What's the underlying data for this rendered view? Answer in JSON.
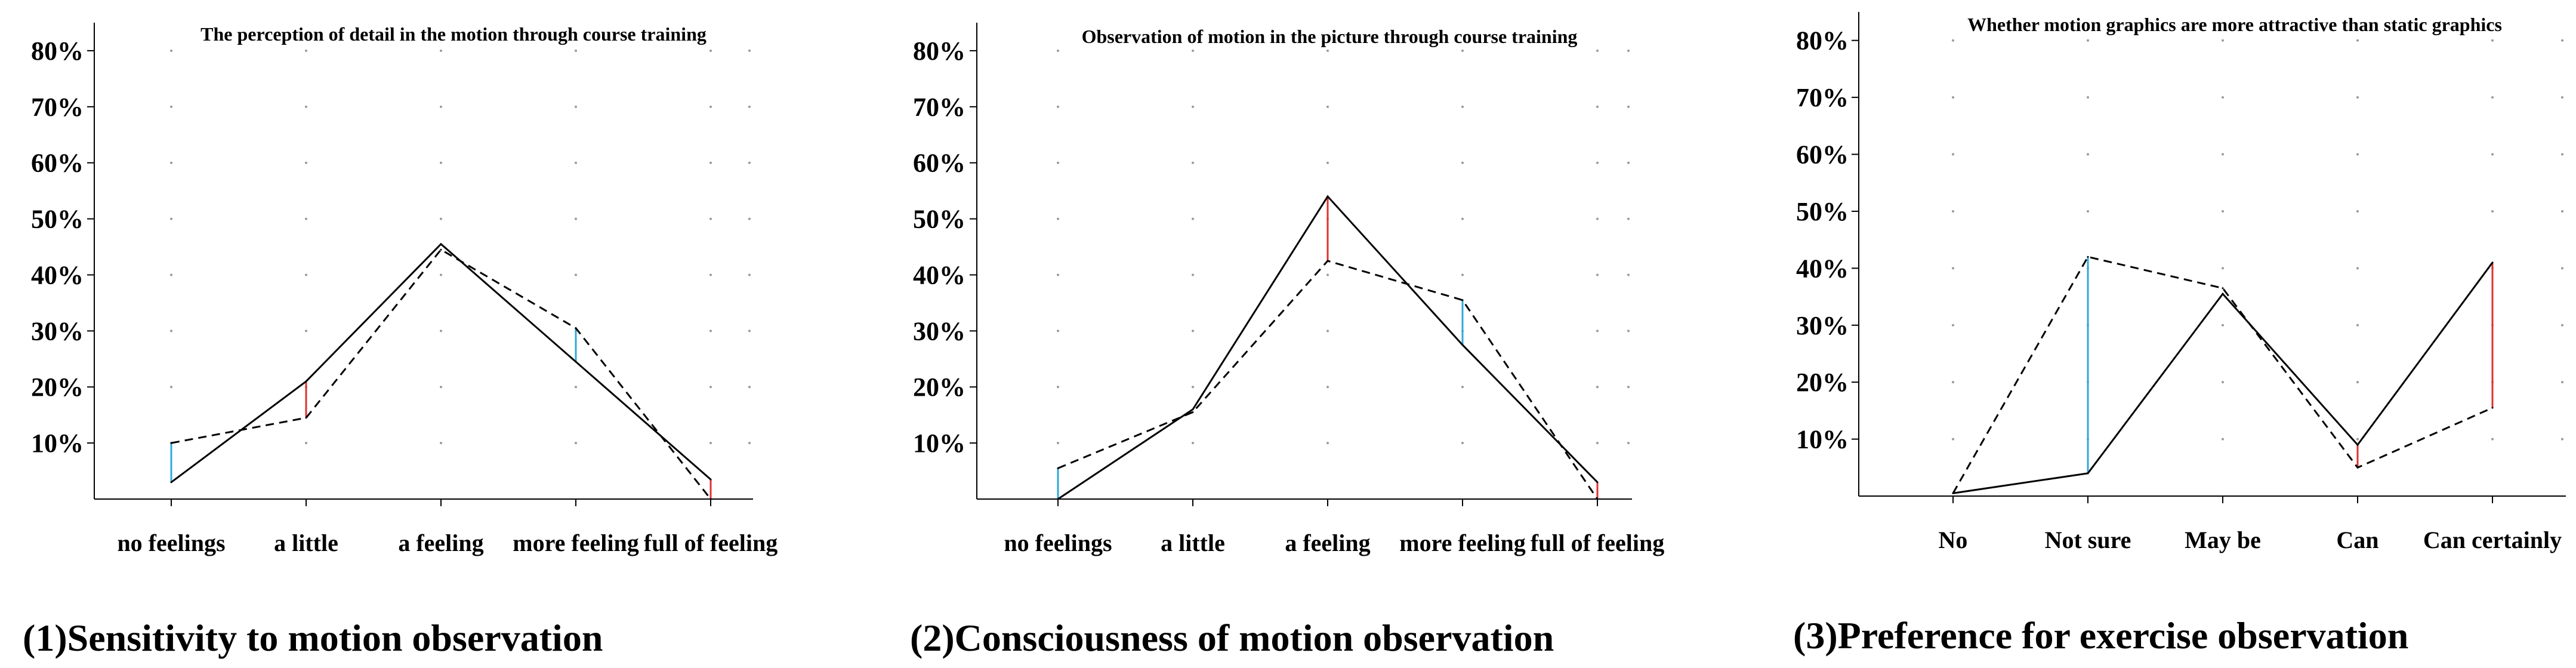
{
  "colors": {
    "axis": "#000000",
    "series_solid": "#000000",
    "series_dashed": "#000000",
    "diff_up": "#e03030",
    "diff_down": "#30a8d8",
    "grid_dot": "#999999"
  },
  "chart_data": [
    {
      "type": "line",
      "title": "The perception of detail in the motion through course training",
      "caption": "(1)Sensitivity to motion observation",
      "categories": [
        "no feelings",
        "a little",
        "a feeling",
        "more feeling",
        "full of feeling"
      ],
      "series": [
        {
          "style": "solid",
          "values": [
            3,
            21,
            45.5,
            24.5,
            3.5
          ]
        },
        {
          "style": "dashed",
          "values": [
            10,
            14.5,
            44.5,
            30.5,
            0
          ]
        }
      ],
      "ylim": [
        0,
        85
      ],
      "yticks": [
        10,
        20,
        30,
        40,
        50,
        60,
        70,
        80
      ],
      "ytick_labels": [
        "10%",
        "20%",
        "30%",
        "40%",
        "50%",
        "60%",
        "70%",
        "80%"
      ],
      "grid": "dotted"
    },
    {
      "type": "line",
      "title": "Observation of motion in the picture through course training",
      "caption": "(2)Consciousness of motion observation",
      "categories": [
        "no feelings",
        "a little",
        "a feeling",
        "more feeling",
        "full of feeling"
      ],
      "series": [
        {
          "style": "solid",
          "values": [
            0,
            16,
            54,
            27.5,
            3
          ]
        },
        {
          "style": "dashed",
          "values": [
            5.5,
            15.5,
            42.5,
            35.5,
            0
          ]
        }
      ],
      "ylim": [
        0,
        85
      ],
      "yticks": [
        10,
        20,
        30,
        40,
        50,
        60,
        70,
        80
      ],
      "ytick_labels": [
        "10%",
        "20%",
        "30%",
        "40%",
        "50%",
        "60%",
        "70%",
        "80%"
      ],
      "grid": "dotted"
    },
    {
      "type": "line",
      "title": "Whether motion graphics are more attractive than static graphics",
      "caption": "(3)Preference for exercise observation",
      "categories": [
        "No",
        "Not sure",
        "May be",
        "Can",
        "Can certainly"
      ],
      "series": [
        {
          "style": "solid",
          "values": [
            0.5,
            4,
            35.5,
            9,
            41
          ]
        },
        {
          "style": "dashed",
          "values": [
            0.5,
            42,
            36.5,
            5,
            15.5
          ]
        }
      ],
      "ylim": [
        0,
        85
      ],
      "yticks": [
        10,
        20,
        30,
        40,
        50,
        60,
        70,
        80
      ],
      "ytick_labels": [
        "10%",
        "20%",
        "30%",
        "40%",
        "50%",
        "60%",
        "70%",
        "80%"
      ],
      "grid": "dotted"
    }
  ]
}
